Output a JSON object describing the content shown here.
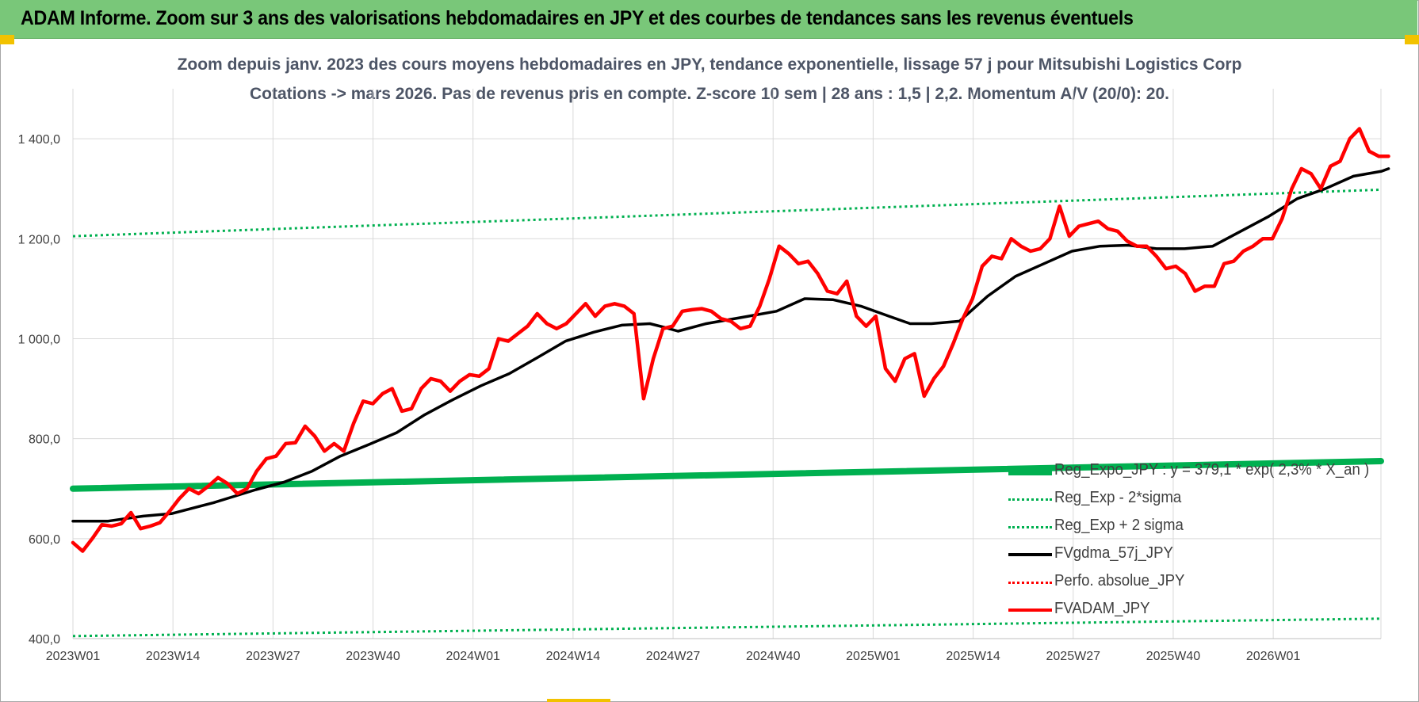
{
  "banner": {
    "title": "ADAM Informe. Zoom sur 3 ans des valorisations hebdomadaires en JPY et des courbes de tendances sans les revenus éventuels"
  },
  "chart_data": {
    "type": "line",
    "title": "Zoom depuis janv. 2023 des cours moyens hebdomadaires en JPY, tendance exponentielle, lissage 57 j pour Mitsubishi Logistics Corp",
    "subtitle": "Cotations -> mars 2026. Pas de revenus pris en compte. Z-score 10 sem | 28 ans : 1,5 | 2,2. Momentum A/V (20/0): 20.",
    "xlabel": "",
    "ylabel": "",
    "ylim": [
      400,
      1500
    ],
    "yticks": [
      "400,0",
      "600,0",
      "800,0",
      "1 000,0",
      "1 200,0",
      "1 400,0"
    ],
    "ytick_values": [
      400,
      600,
      800,
      1000,
      1200,
      1400
    ],
    "xticks": [
      "2023W01",
      "2023W14",
      "2023W27",
      "2023W40",
      "2024W01",
      "2024W14",
      "2024W27",
      "2024W40",
      "2025W01",
      "2025W14",
      "2025W27",
      "2025W40",
      "2026W01"
    ],
    "xtick_index": [
      0,
      13,
      26,
      39,
      52,
      65,
      78,
      91,
      104,
      117,
      130,
      143,
      156
    ],
    "n_weeks": 171,
    "grid": true,
    "legend_position": "bottom-right",
    "series": [
      {
        "name": "Reg_Expo_JPY : y = 379,1 * exp( 2,3% *  X_an )",
        "style": "thick-solid",
        "color": "#00b050",
        "points": [
          [
            0,
            700
          ],
          [
            170,
            755
          ]
        ]
      },
      {
        "name": "Reg_Exp - 2*sigma",
        "style": "dotted",
        "color": "#00b050",
        "points": [
          [
            0,
            405
          ],
          [
            170,
            440
          ]
        ]
      },
      {
        "name": "Reg_Exp + 2 sigma",
        "style": "dotted",
        "color": "#00b050",
        "points": [
          [
            0,
            1205
          ],
          [
            170,
            1298
          ]
        ]
      },
      {
        "name": "FVgdma_57j_JPY",
        "style": "solid",
        "color": "#000000",
        "points": [
          [
            0,
            635
          ],
          [
            5,
            635
          ],
          [
            10,
            645
          ],
          [
            14,
            650
          ],
          [
            20,
            672
          ],
          [
            26,
            698
          ],
          [
            30,
            713
          ],
          [
            34,
            735
          ],
          [
            38,
            765
          ],
          [
            42,
            788
          ],
          [
            46,
            812
          ],
          [
            50,
            848
          ],
          [
            54,
            878
          ],
          [
            58,
            906
          ],
          [
            62,
            930
          ],
          [
            66,
            962
          ],
          [
            70,
            995
          ],
          [
            74,
            1013
          ],
          [
            78,
            1027
          ],
          [
            82,
            1030
          ],
          [
            84,
            1023
          ],
          [
            86,
            1015
          ],
          [
            90,
            1030
          ],
          [
            96,
            1045
          ],
          [
            100,
            1055
          ],
          [
            104,
            1080
          ],
          [
            108,
            1078
          ],
          [
            112,
            1065
          ],
          [
            116,
            1045
          ],
          [
            119,
            1030
          ],
          [
            122,
            1030
          ],
          [
            126,
            1035
          ],
          [
            130,
            1085
          ],
          [
            134,
            1125
          ],
          [
            138,
            1150
          ],
          [
            142,
            1175
          ],
          [
            146,
            1185
          ],
          [
            150,
            1187
          ],
          [
            154,
            1180
          ],
          [
            158,
            1180
          ],
          [
            162,
            1185
          ],
          [
            166,
            1215
          ],
          [
            170,
            1245
          ],
          [
            174,
            1280
          ],
          [
            178,
            1300
          ],
          [
            182,
            1325
          ],
          [
            186,
            1335
          ],
          [
            187,
            1340
          ]
        ],
        "x_scale": 0.9144
      },
      {
        "name": "Perfo. absolue_JPY",
        "style": "dotted",
        "color": "#ff0000",
        "points": []
      },
      {
        "name": "FVADAM_JPY",
        "style": "thick-solid",
        "color": "#ff0000",
        "points": [
          [
            0,
            592
          ],
          [
            2,
            575
          ],
          [
            4,
            600
          ],
          [
            6,
            628
          ],
          [
            8,
            625
          ],
          [
            10,
            630
          ],
          [
            12,
            652
          ],
          [
            14,
            620
          ],
          [
            16,
            625
          ],
          [
            18,
            632
          ],
          [
            20,
            655
          ],
          [
            22,
            680
          ],
          [
            24,
            700
          ],
          [
            26,
            690
          ],
          [
            28,
            705
          ],
          [
            30,
            722
          ],
          [
            32,
            710
          ],
          [
            34,
            690
          ],
          [
            36,
            700
          ],
          [
            38,
            735
          ],
          [
            40,
            760
          ],
          [
            42,
            765
          ],
          [
            44,
            790
          ],
          [
            46,
            792
          ],
          [
            48,
            825
          ],
          [
            50,
            805
          ],
          [
            52,
            775
          ],
          [
            54,
            790
          ],
          [
            56,
            775
          ],
          [
            58,
            830
          ],
          [
            60,
            875
          ],
          [
            62,
            870
          ],
          [
            64,
            890
          ],
          [
            66,
            900
          ],
          [
            68,
            855
          ],
          [
            70,
            860
          ],
          [
            72,
            900
          ],
          [
            74,
            920
          ],
          [
            76,
            915
          ],
          [
            78,
            895
          ],
          [
            80,
            915
          ],
          [
            82,
            928
          ],
          [
            84,
            925
          ],
          [
            86,
            940
          ],
          [
            88,
            1000
          ],
          [
            90,
            995
          ],
          [
            92,
            1010
          ],
          [
            94,
            1025
          ],
          [
            96,
            1050
          ],
          [
            98,
            1030
          ],
          [
            100,
            1020
          ],
          [
            102,
            1030
          ],
          [
            104,
            1050
          ],
          [
            106,
            1070
          ],
          [
            108,
            1045
          ],
          [
            110,
            1065
          ],
          [
            112,
            1070
          ],
          [
            114,
            1065
          ],
          [
            116,
            1050
          ],
          [
            118,
            880
          ],
          [
            120,
            960
          ],
          [
            122,
            1020
          ],
          [
            124,
            1025
          ],
          [
            126,
            1055
          ],
          [
            128,
            1058
          ],
          [
            130,
            1060
          ],
          [
            132,
            1055
          ],
          [
            134,
            1040
          ],
          [
            136,
            1035
          ],
          [
            138,
            1020
          ],
          [
            140,
            1025
          ],
          [
            142,
            1065
          ],
          [
            144,
            1120
          ],
          [
            146,
            1185
          ],
          [
            148,
            1170
          ],
          [
            150,
            1150
          ],
          [
            152,
            1155
          ],
          [
            154,
            1130
          ],
          [
            156,
            1095
          ],
          [
            158,
            1090
          ],
          [
            160,
            1115
          ],
          [
            162,
            1045
          ],
          [
            164,
            1025
          ],
          [
            166,
            1045
          ],
          [
            168,
            940
          ],
          [
            170,
            915
          ],
          [
            172,
            960
          ],
          [
            174,
            970
          ],
          [
            176,
            885
          ],
          [
            178,
            920
          ],
          [
            180,
            945
          ],
          [
            182,
            990
          ],
          [
            184,
            1040
          ],
          [
            186,
            1080
          ],
          [
            188,
            1145
          ],
          [
            190,
            1165
          ],
          [
            192,
            1160
          ],
          [
            194,
            1200
          ],
          [
            196,
            1185
          ],
          [
            198,
            1175
          ],
          [
            200,
            1180
          ],
          [
            202,
            1200
          ],
          [
            204,
            1265
          ],
          [
            206,
            1205
          ],
          [
            208,
            1225
          ],
          [
            210,
            1230
          ],
          [
            212,
            1235
          ],
          [
            214,
            1220
          ],
          [
            216,
            1215
          ],
          [
            218,
            1195
          ],
          [
            220,
            1185
          ],
          [
            222,
            1185
          ],
          [
            224,
            1165
          ],
          [
            226,
            1140
          ],
          [
            228,
            1145
          ],
          [
            230,
            1130
          ],
          [
            232,
            1095
          ],
          [
            234,
            1105
          ],
          [
            236,
            1105
          ],
          [
            238,
            1150
          ],
          [
            240,
            1155
          ],
          [
            242,
            1175
          ],
          [
            244,
            1185
          ],
          [
            246,
            1200
          ],
          [
            248,
            1200
          ],
          [
            250,
            1240
          ],
          [
            252,
            1300
          ],
          [
            254,
            1340
          ],
          [
            256,
            1330
          ],
          [
            258,
            1300
          ],
          [
            260,
            1345
          ],
          [
            262,
            1355
          ],
          [
            264,
            1400
          ],
          [
            266,
            1420
          ],
          [
            268,
            1375
          ],
          [
            270,
            1365
          ],
          [
            272,
            1365
          ]
        ],
        "x_scale": 0.6286
      }
    ]
  }
}
